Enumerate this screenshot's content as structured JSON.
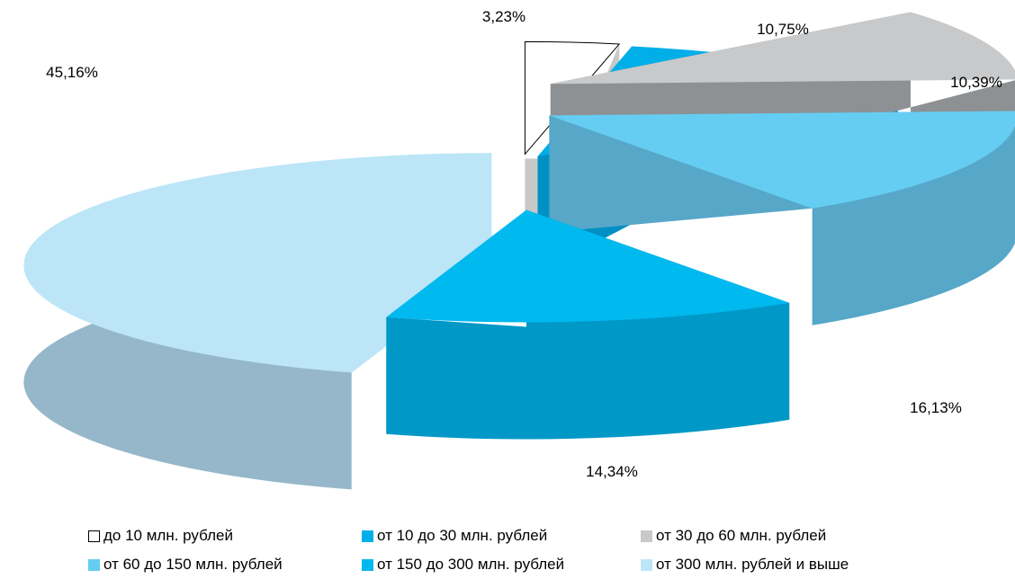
{
  "chart_data": {
    "type": "pie",
    "slices": [
      {
        "label": "до 10 млн. рублей",
        "value": 3.23,
        "value_label": "3,23%",
        "color": "#ffffff",
        "side_color": "#c8c8c8"
      },
      {
        "label": "от 10 до 30 млн. рублей",
        "value": 10.75,
        "value_label": "10,75%",
        "color": "#00aee8",
        "side_color": "#0090c4"
      },
      {
        "label": "от 30 до 60 млн. рублей",
        "value": 10.39,
        "value_label": "10,39%",
        "color": "#c8c9ca",
        "side_color": "#8e9193"
      },
      {
        "label": "от 60 до 150 млн. рублей",
        "value": 16.13,
        "value_label": "16,13%",
        "color": "#66cdf2",
        "side_color": "#56a7c8"
      },
      {
        "label": "от 150 до 300 млн. рублей",
        "value": 14.34,
        "value_label": "14,34%",
        "color": "#00b9ef",
        "side_color": "#0098c7"
      },
      {
        "label": "от 300 млн. рублей и выше",
        "value": 45.16,
        "value_label": "45,16%",
        "color": "#bce6f8",
        "side_color": "#95b7c9"
      }
    ],
    "exploded": true,
    "legend_position": "bottom"
  }
}
